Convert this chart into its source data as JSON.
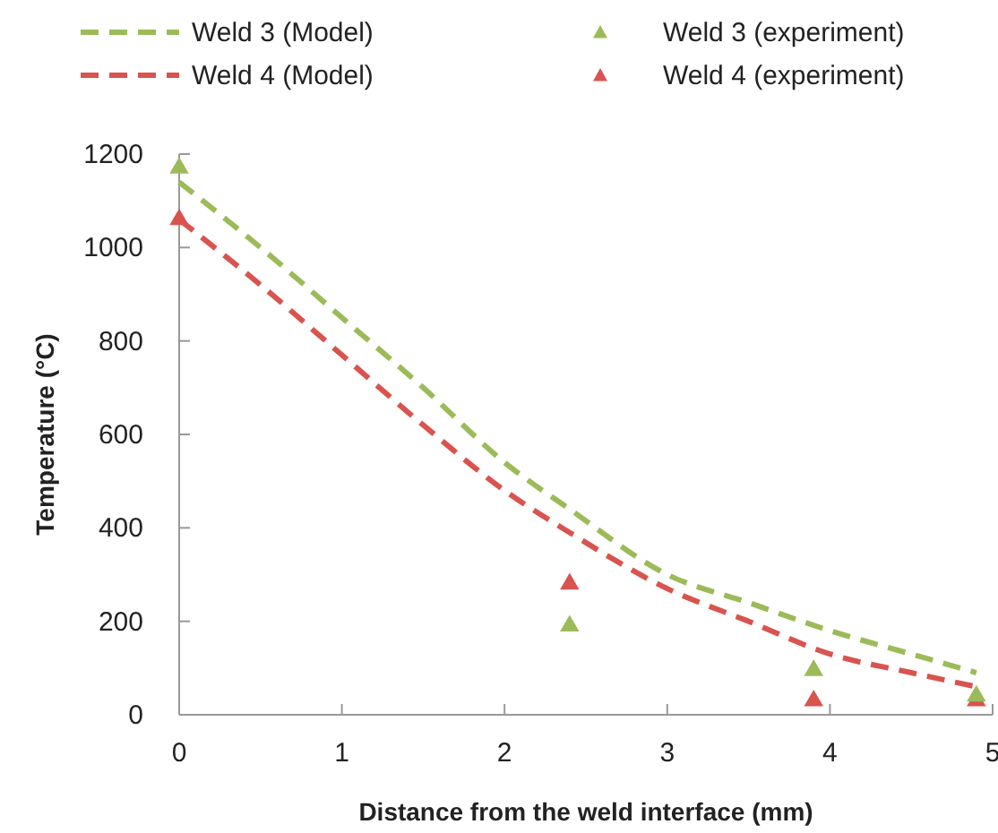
{
  "chart_data": {
    "type": "line",
    "xlabel": "Distance from the weld interface (mm)",
    "ylabel": "Temperature (°C)",
    "xlim": [
      0,
      5
    ],
    "xticks": [
      0,
      1,
      2,
      3,
      4,
      5
    ],
    "ylim": [
      0,
      1200
    ],
    "yticks": [
      0,
      200,
      400,
      600,
      800,
      1000,
      1200
    ],
    "grid": false,
    "legend": "top",
    "series": [
      {
        "name": "Weld 3 (Model)",
        "color": "#9bbb59",
        "line_style": "dashed",
        "marker": "none",
        "x": [
          0,
          0.5,
          1,
          1.5,
          2,
          2.4,
          3,
          3.5,
          4,
          4.5,
          4.9
        ],
        "values": [
          1140,
          1000,
          850,
          700,
          540,
          440,
          300,
          240,
          180,
          130,
          90
        ]
      },
      {
        "name": "Weld 4 (Model)",
        "color": "#d9534f",
        "line_style": "dashed",
        "marker": "none",
        "x": [
          0,
          0.5,
          1,
          1.5,
          2,
          2.4,
          3,
          3.5,
          4,
          4.5,
          4.9
        ],
        "values": [
          1060,
          920,
          770,
          620,
          480,
          390,
          270,
          200,
          130,
          90,
          60
        ]
      },
      {
        "name": "Weld 3 (experiment)",
        "color": "#9bbb59",
        "type": "scatter",
        "marker": "triangle",
        "x": [
          0,
          2.4,
          3.9,
          4.9
        ],
        "values": [
          1170,
          190,
          95,
          40
        ]
      },
      {
        "name": "Weld 4 (experiment)",
        "color": "#d9534f",
        "type": "scatter",
        "marker": "triangle",
        "x": [
          0,
          2.4,
          3.9,
          4.9
        ],
        "values": [
          1060,
          280,
          30,
          30
        ]
      }
    ]
  }
}
